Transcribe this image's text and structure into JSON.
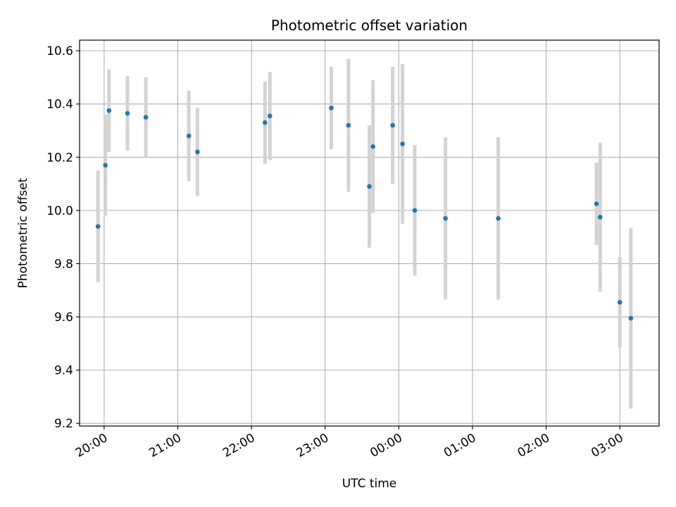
{
  "chart_data": {
    "type": "scatter",
    "title": "Photometric offset variation",
    "xlabel": "UTC time",
    "ylabel": "Photometric offset",
    "grid": true,
    "x_tick_labels": [
      "20:00",
      "21:00",
      "22:00",
      "23:00",
      "00:00",
      "01:00",
      "02:00",
      "03:00"
    ],
    "x_tick_times": [
      "2000-01-01T20:00",
      "2000-01-01T21:00",
      "2000-01-01T22:00",
      "2000-01-01T23:00",
      "2000-01-02T00:00",
      "2000-01-02T01:00",
      "2000-01-02T02:00",
      "2000-01-02T03:00"
    ],
    "xlim": [
      "2000-01-01T19:40",
      "2000-01-02T03:32"
    ],
    "y_ticks": [
      9.2,
      9.4,
      9.6,
      9.8,
      10.0,
      10.2,
      10.4,
      10.6
    ],
    "ylim": [
      9.19,
      10.64
    ],
    "point_color": "#1f77b4",
    "errorbar_color": "#d3d3d3",
    "series": [
      {
        "x": [
          "2000-01-01T19:55",
          "2000-01-01T20:01",
          "2000-01-01T20:04",
          "2000-01-01T20:19",
          "2000-01-01T20:34",
          "2000-01-01T21:09",
          "2000-01-01T21:16",
          "2000-01-01T22:11",
          "2000-01-01T22:15",
          "2000-01-01T23:05",
          "2000-01-01T23:19",
          "2000-01-01T23:36",
          "2000-01-01T23:39",
          "2000-01-01T23:55",
          "2000-01-02T00:03",
          "2000-01-02T00:13",
          "2000-01-02T00:38",
          "2000-01-02T01:21",
          "2000-01-02T02:41",
          "2000-01-02T02:44",
          "2000-01-02T03:00",
          "2000-01-02T03:09"
        ],
        "y": [
          9.94,
          10.17,
          10.375,
          10.365,
          10.35,
          10.28,
          10.22,
          10.33,
          10.355,
          10.385,
          10.32,
          10.09,
          10.24,
          10.32,
          10.25,
          10.0,
          9.97,
          9.97,
          10.025,
          9.975,
          9.655,
          9.595
        ],
        "yerr": [
          0.21,
          0.19,
          0.155,
          0.14,
          0.15,
          0.17,
          0.165,
          0.155,
          0.165,
          0.155,
          0.25,
          0.23,
          0.25,
          0.22,
          0.3,
          0.245,
          0.305,
          0.305,
          0.155,
          0.28,
          0.17,
          0.34
        ]
      }
    ]
  }
}
